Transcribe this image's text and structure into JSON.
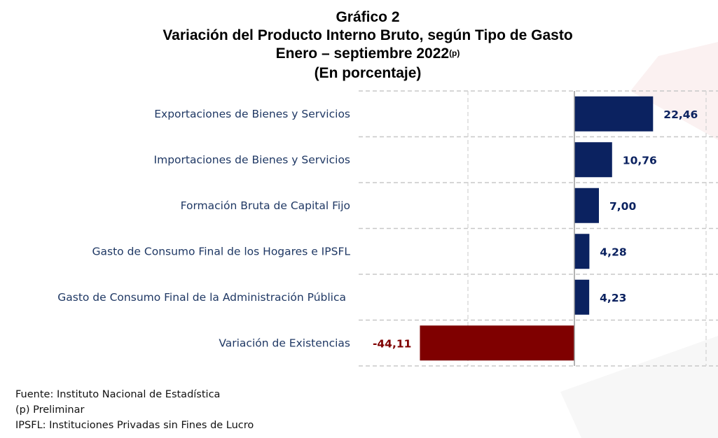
{
  "header": {
    "graph_number": "Gráfico 2",
    "title": "Variación del Producto Interno Bruto, según Tipo de Gasto",
    "period": "Enero – septiembre 2022",
    "period_note": "(p)",
    "unit": "(En porcentaje)"
  },
  "chart_data": {
    "type": "bar",
    "orientation": "horizontal",
    "categories": [
      "Exportaciones de Bienes y Servicios",
      "Importaciones de Bienes y Servicios",
      "Formación Bruta de Capital Fijo",
      "Gasto de Consumo Final de los Hogares e  IPSFL",
      "Gasto de Consumo Final de la Administración Pública",
      "Variación de Existencias"
    ],
    "values": [
      22.46,
      10.76,
      7.0,
      4.28,
      4.23,
      -44.11
    ],
    "value_labels": [
      "22,46",
      "10,76",
      "7,00",
      "4,28",
      "4,23",
      "-44,11"
    ],
    "colors": {
      "positive": "#0b2260",
      "negative": "#7f0000",
      "positive_label": "#0b2260",
      "negative_label": "#7f0000"
    },
    "xlim": [
      -44.11,
      40
    ],
    "grid": true
  },
  "footer": {
    "source": "Fuente: Instituto Nacional de Estadística",
    "note": "(p) Preliminar",
    "abbrev": "IPSFL: Instituciones Privadas sin Fines de Lucro"
  }
}
